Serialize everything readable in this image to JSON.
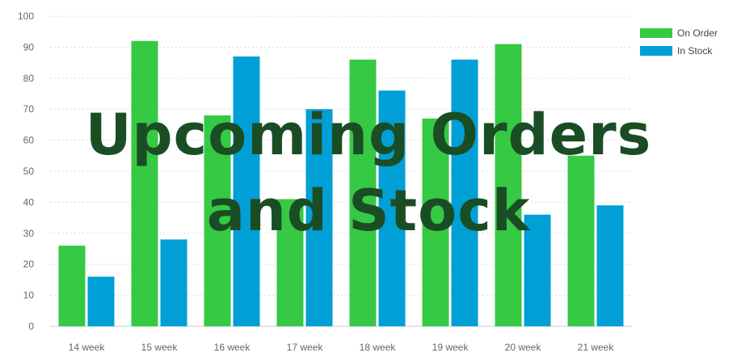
{
  "chart_data": {
    "type": "bar",
    "categories": [
      "14 week",
      "15 week",
      "16 week",
      "17 week",
      "18 week",
      "19 week",
      "20 week",
      "21 week"
    ],
    "series": [
      {
        "name": "On Order",
        "color": "#35c944",
        "values": [
          26,
          92,
          68,
          41,
          86,
          67,
          91,
          55
        ]
      },
      {
        "name": "In Stock",
        "color": "#009fd6",
        "values": [
          16,
          28,
          87,
          70,
          76,
          86,
          36,
          39
        ]
      }
    ],
    "ylim": [
      0,
      100
    ],
    "yticks": [
      0,
      10,
      20,
      30,
      40,
      50,
      60,
      70,
      80,
      90,
      100
    ],
    "grid": true,
    "legend": "top-right"
  },
  "overlay": {
    "line1": "Upcoming Orders",
    "line2": "and Stock"
  }
}
